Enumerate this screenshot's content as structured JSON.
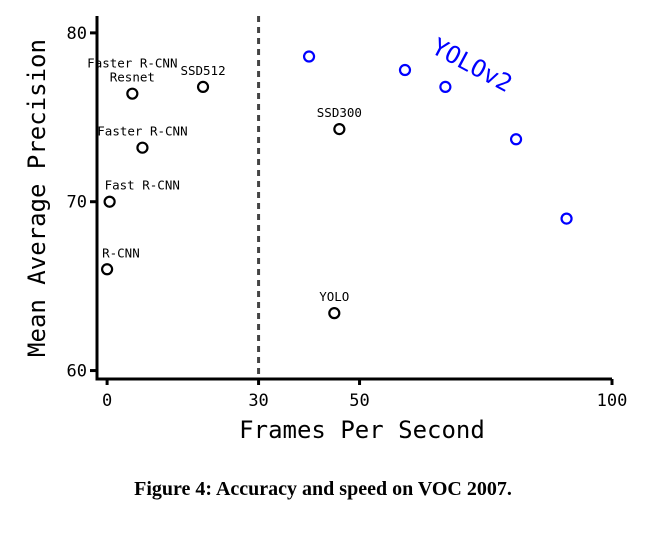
{
  "chart_data": {
    "type": "scatter",
    "xlabel": "Frames Per Second",
    "ylabel": "Mean Average Precision",
    "xlim": [
      -2,
      100
    ],
    "ylim": [
      59.5,
      81
    ],
    "x_ticks": [
      "0",
      "30",
      "50",
      "100"
    ],
    "x_tick_values": [
      0,
      30,
      50,
      100
    ],
    "y_ticks": [
      "60",
      "70",
      "80"
    ],
    "y_tick_values": [
      60,
      70,
      80
    ],
    "realtime_divider": 30,
    "grid": false,
    "annotation": "YOLOv2",
    "points": [
      {
        "label": "Faster R-CNN Resnet",
        "x": 5,
        "y": 76.4,
        "color": "#000000"
      },
      {
        "label": "SSD512",
        "x": 19,
        "y": 76.8,
        "color": "#000000"
      },
      {
        "label": "Faster R-CNN",
        "x": 7,
        "y": 73.2,
        "color": "#000000"
      },
      {
        "label": "Fast R-CNN",
        "x": 0.5,
        "y": 70.0,
        "color": "#000000"
      },
      {
        "label": "R-CNN",
        "x": 0,
        "y": 66.0,
        "color": "#000000"
      },
      {
        "label": "SSD300",
        "x": 46,
        "y": 74.3,
        "color": "#000000"
      },
      {
        "label": "YOLO",
        "x": 45,
        "y": 63.4,
        "color": "#000000"
      },
      {
        "label": "",
        "x": 40,
        "y": 78.6,
        "color": "#0000ff"
      },
      {
        "label": "",
        "x": 59,
        "y": 77.8,
        "color": "#0000ff"
      },
      {
        "label": "",
        "x": 67,
        "y": 76.8,
        "color": "#0000ff"
      },
      {
        "label": "",
        "x": 81,
        "y": 73.7,
        "color": "#0000ff"
      },
      {
        "label": "",
        "x": 91,
        "y": 69.0,
        "color": "#0000ff"
      }
    ]
  },
  "caption": {
    "prefix": "Figure 4:",
    "text": "Accuracy and speed on VOC 2007."
  }
}
